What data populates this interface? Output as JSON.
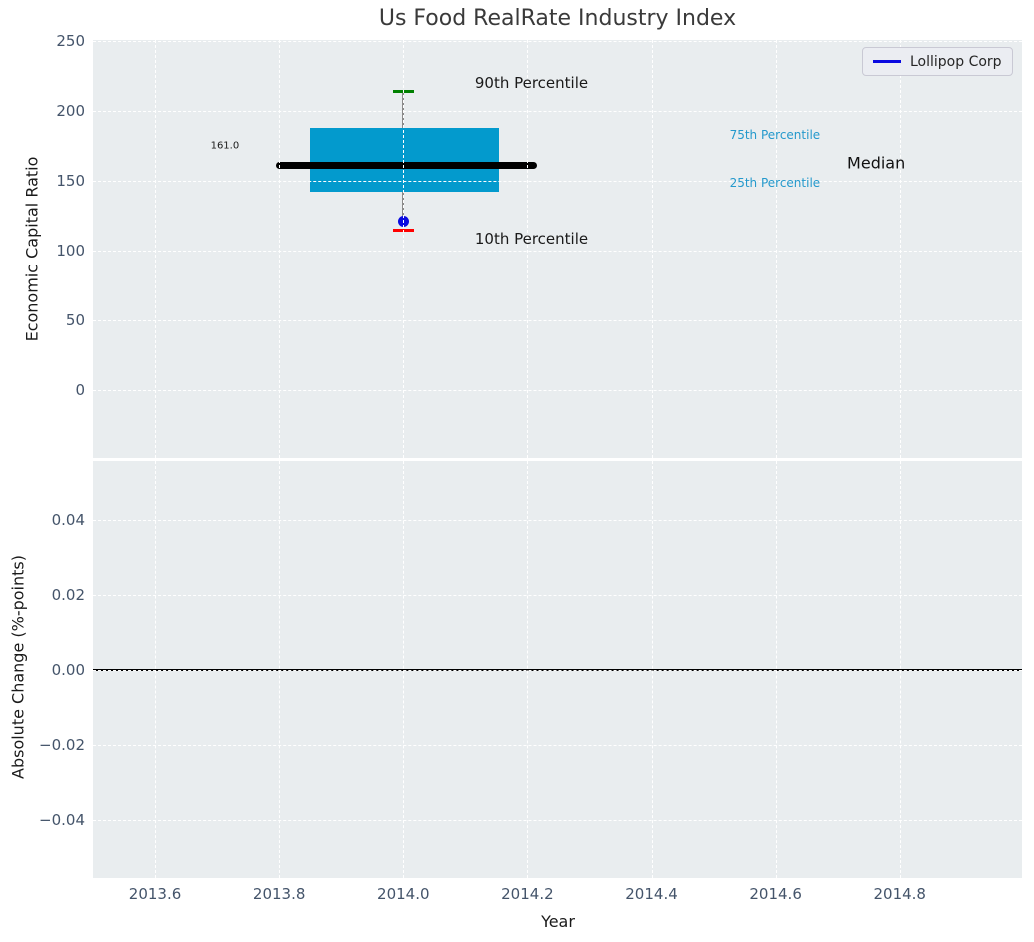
{
  "figure": {
    "title": "Us Food RealRate Industry Index",
    "legend": {
      "label": "Lollipop Corp",
      "line_color": "#0a0ae0"
    }
  },
  "chart_data": [
    {
      "type": "bar",
      "subtype": "percentile-box-lollipop",
      "title": "Us Food RealRate Industry Index",
      "xlabel": "Year",
      "ylabel": "Economic Capital Ratio",
      "xlim": [
        2013.5,
        2014.997
      ],
      "ylim": [
        -48.5,
        250.7
      ],
      "xticks": [
        2013.6,
        2013.8,
        2014.0,
        2014.2,
        2014.4,
        2014.6,
        2014.8
      ],
      "xtick_labels": [
        "2013.6",
        "2013.8",
        "2014.0",
        "2014.2",
        "2014.4",
        "2014.6",
        "2014.8"
      ],
      "yticks": [
        0,
        50,
        100,
        150,
        200,
        250
      ],
      "ytick_labels": [
        "0",
        "50",
        "100",
        "150",
        "200",
        "250"
      ],
      "grid": true,
      "legend_position": "upper right",
      "legend_entries": [
        "Lollipop Corp"
      ],
      "series": {
        "year": 2014.0,
        "p90": 213.5,
        "p75": 187.5,
        "median": 161.0,
        "p25": 142.0,
        "p10": 114.5,
        "company_name": "Lollipop Corp",
        "company_value": 120.5,
        "box_x": [
          2013.85,
          2014.155
        ],
        "median_x": [
          2013.795,
          2014.215
        ],
        "cap_halfwidth_years": 0.017
      },
      "median_value_label": "161.0",
      "annotations": [
        {
          "text": "90th Percentile",
          "xf": 0.472,
          "yf": 0.103,
          "color": "#1a1a1a",
          "size": 15
        },
        {
          "text": "10th Percentile",
          "xf": 0.472,
          "yf": 0.476,
          "color": "#1a1a1a",
          "size": 15
        },
        {
          "text": "161.0",
          "xf": 0.142,
          "yf": 0.253,
          "color": "#1a1a1a",
          "size": 10
        },
        {
          "text": "75th Percentile",
          "xf": 0.734,
          "yf": 0.227,
          "color": "#2499cc",
          "size": 12
        },
        {
          "text": "25th Percentile",
          "xf": 0.734,
          "yf": 0.342,
          "color": "#2499cc",
          "size": 12
        },
        {
          "text": "Median",
          "xf": 0.843,
          "yf": 0.294,
          "color": "#111111",
          "size": 16
        }
      ],
      "colors": {
        "box": "#039acd",
        "median_line": "#000000",
        "p90_cap": "#008000",
        "p10_cap": "#ff0000",
        "company_dot": "#0a0ae0",
        "whisker": "#8a8a8a",
        "background": "#e9edef",
        "grid": "#ffffff",
        "tick_text": "#44546a"
      }
    },
    {
      "type": "line",
      "subtype": "zero-reference",
      "title": "",
      "xlabel": "Year",
      "ylabel": "Absolute Change (%-points)",
      "xlim": [
        2013.5,
        2014.997
      ],
      "ylim": [
        -0.0555,
        0.0557
      ],
      "xticks": [
        2013.6,
        2013.8,
        2014.0,
        2014.2,
        2014.4,
        2014.6,
        2014.8
      ],
      "xtick_labels": [
        "2013.6",
        "2013.8",
        "2014.0",
        "2014.2",
        "2014.4",
        "2014.6",
        "2014.8"
      ],
      "yticks": [
        -0.04,
        -0.02,
        0.0,
        0.02,
        0.04
      ],
      "ytick_labels": [
        "−0.04",
        "−0.02",
        "0.00",
        "0.02",
        "0.04"
      ],
      "grid": true,
      "zero_line_value": 0.0,
      "zero_line_color": "#000000"
    }
  ]
}
